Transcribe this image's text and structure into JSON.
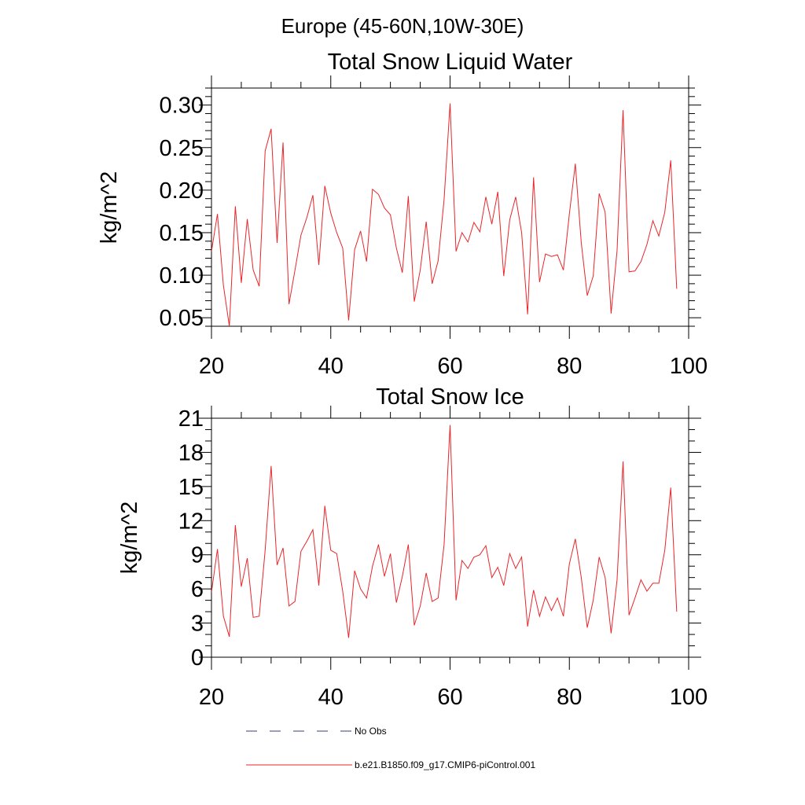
{
  "figure": {
    "suptitle": "Europe (45-60N,10W-30E)"
  },
  "legend": {
    "entries": [
      {
        "label": "No Obs",
        "style": "dashed",
        "color": "#3a3f6e"
      },
      {
        "label": "b.e21.B1850.f09_g17.CMIP6-piControl.001",
        "style": "solid",
        "color": "#e8262a"
      }
    ]
  },
  "chart_data": [
    {
      "type": "line",
      "title": "Total Snow Liquid Water",
      "xlabel": "",
      "ylabel": "kg/m^2",
      "xlim": [
        20,
        100
      ],
      "ylim": [
        0.04,
        0.32
      ],
      "xticks": [
        20,
        40,
        60,
        80,
        100
      ],
      "xtick_labels": [
        "20",
        "40",
        "60",
        "80",
        "100"
      ],
      "yticks": [
        0.05,
        0.1,
        0.15,
        0.2,
        0.25,
        0.3
      ],
      "ytick_labels": [
        "0.05",
        "0.10",
        "0.15",
        "0.20",
        "0.25",
        "0.30"
      ],
      "series": [
        {
          "name": "b.e21.B1850.f09_g17.CMIP6-piControl.001",
          "color": "#e8262a",
          "x_start": 20,
          "x_step": 1,
          "values": [
            0.128,
            0.172,
            0.088,
            0.04,
            0.181,
            0.091,
            0.166,
            0.106,
            0.087,
            0.246,
            0.272,
            0.138,
            0.256,
            0.066,
            0.106,
            0.147,
            0.168,
            0.194,
            0.112,
            0.205,
            0.173,
            0.15,
            0.132,
            0.047,
            0.13,
            0.152,
            0.116,
            0.201,
            0.195,
            0.179,
            0.171,
            0.132,
            0.103,
            0.193,
            0.069,
            0.106,
            0.163,
            0.09,
            0.117,
            0.189,
            0.302,
            0.128,
            0.15,
            0.139,
            0.162,
            0.151,
            0.192,
            0.16,
            0.198,
            0.099,
            0.165,
            0.192,
            0.15,
            0.054,
            0.215,
            0.092,
            0.125,
            0.122,
            0.124,
            0.106,
            0.172,
            0.231,
            0.138,
            0.076,
            0.099,
            0.196,
            0.174,
            0.055,
            0.129,
            0.294,
            0.104,
            0.105,
            0.116,
            0.136,
            0.164,
            0.146,
            0.174,
            0.235,
            0.084
          ]
        }
      ]
    },
    {
      "type": "line",
      "title": "Total Snow Ice",
      "xlabel": "",
      "ylabel": "kg/m^2",
      "xlim": [
        20,
        100
      ],
      "ylim": [
        0,
        21
      ],
      "xticks": [
        20,
        40,
        60,
        80,
        100
      ],
      "xtick_labels": [
        "20",
        "40",
        "60",
        "80",
        "100"
      ],
      "yticks": [
        0,
        3,
        6,
        9,
        12,
        15,
        18,
        21
      ],
      "ytick_labels": [
        "0",
        "3",
        "6",
        "9",
        "12",
        "15",
        "18",
        "21"
      ],
      "series": [
        {
          "name": "b.e21.B1850.f09_g17.CMIP6-piControl.001",
          "color": "#e8262a",
          "x_start": 20,
          "x_step": 1,
          "values": [
            5.7,
            9.5,
            3.6,
            1.8,
            11.6,
            6.2,
            8.7,
            3.5,
            3.6,
            9.4,
            16.8,
            8.1,
            9.6,
            4.5,
            4.9,
            9.3,
            10.2,
            11.2,
            6.3,
            13.3,
            9.4,
            9.1,
            5.8,
            1.7,
            7.6,
            6.0,
            5.2,
            8.0,
            9.9,
            7.1,
            9.1,
            4.8,
            7.1,
            9.9,
            2.8,
            4.5,
            7.4,
            4.9,
            5.2,
            9.9,
            20.4,
            5.0,
            8.5,
            7.8,
            8.8,
            9.0,
            9.8,
            7.0,
            7.9,
            6.3,
            9.1,
            7.8,
            8.8,
            2.7,
            5.9,
            3.6,
            5.3,
            4.1,
            5.2,
            3.6,
            8.2,
            10.4,
            7.0,
            2.6,
            5.0,
            8.8,
            7.0,
            2.1,
            6.8,
            17.2,
            3.7,
            5.2,
            6.8,
            5.8,
            6.5,
            6.5,
            9.4,
            14.9,
            4.0
          ]
        }
      ]
    }
  ]
}
